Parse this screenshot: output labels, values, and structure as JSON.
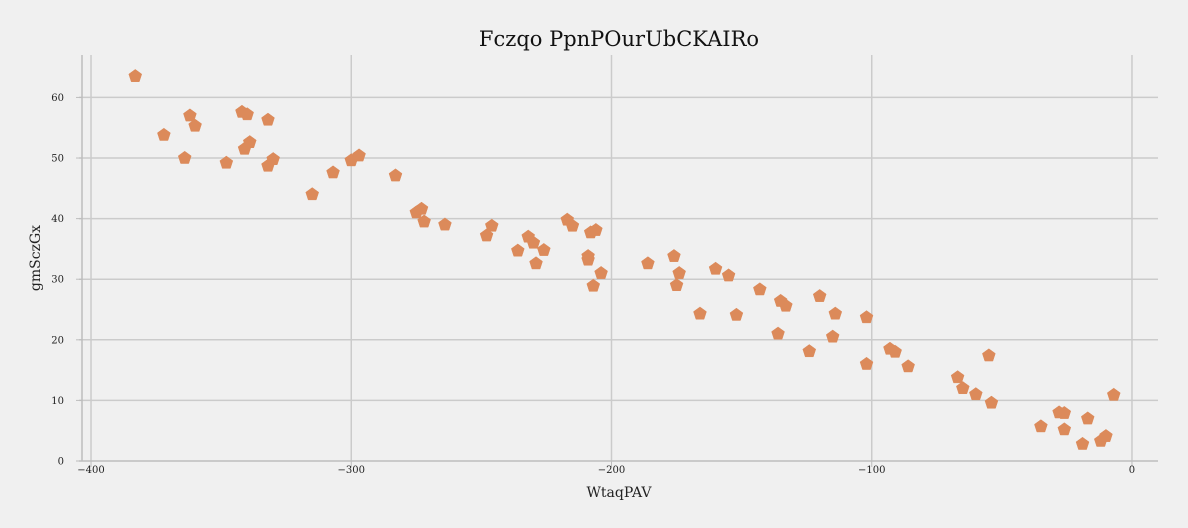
{
  "chart_data": {
    "type": "scatter",
    "title": "Fczqo PpnPOurUbCKAIRo",
    "xlabel": "WtaqPAV",
    "ylabel": "gmSczGx",
    "xlim": [
      -410,
      10
    ],
    "ylim": [
      0,
      67
    ],
    "xticks": [
      -400,
      -300,
      -200,
      -100,
      0
    ],
    "xtick_labels": [
      "−400",
      "−300",
      "−200",
      "−100",
      "0"
    ],
    "yticks": [
      0,
      10,
      20,
      30,
      40,
      50,
      60
    ],
    "ytick_labels": [
      "0",
      "10",
      "20",
      "30",
      "40",
      "50",
      "60"
    ],
    "grid": true,
    "marker": "pentagon",
    "color": "#dc8a5a",
    "series": [
      {
        "points": [
          [
            -383,
            63.5
          ],
          [
            -372,
            53.8
          ],
          [
            -364,
            50.0
          ],
          [
            -362,
            57.0
          ],
          [
            -360,
            55.3
          ],
          [
            -348,
            49.2
          ],
          [
            -342,
            57.6
          ],
          [
            -340,
            57.2
          ],
          [
            -341,
            51.5
          ],
          [
            -339,
            52.6
          ],
          [
            -332,
            56.3
          ],
          [
            -332,
            48.7
          ],
          [
            -330,
            49.8
          ],
          [
            -315,
            44.0
          ],
          [
            -307,
            47.6
          ],
          [
            -300,
            49.6
          ],
          [
            -297,
            50.4
          ],
          [
            -283,
            47.1
          ],
          [
            -275,
            41.0
          ],
          [
            -273,
            41.6
          ],
          [
            -272,
            39.5
          ],
          [
            -264,
            39.0
          ],
          [
            -248,
            37.2
          ],
          [
            -246,
            38.8
          ],
          [
            -236,
            34.7
          ],
          [
            -232,
            37.0
          ],
          [
            -230,
            36.0
          ],
          [
            -229,
            32.6
          ],
          [
            -226,
            34.8
          ],
          [
            -217,
            39.8
          ],
          [
            -215,
            38.8
          ],
          [
            -209,
            33.8
          ],
          [
            -209,
            33.2
          ],
          [
            -208,
            37.7
          ],
          [
            -206,
            38.1
          ],
          [
            -207,
            28.9
          ],
          [
            -204,
            31.0
          ],
          [
            -186,
            32.6
          ],
          [
            -176,
            33.8
          ],
          [
            -174,
            31.0
          ],
          [
            -175,
            29.0
          ],
          [
            -166,
            24.3
          ],
          [
            -160,
            31.7
          ],
          [
            -155,
            30.6
          ],
          [
            -152,
            24.1
          ],
          [
            -143,
            28.3
          ],
          [
            -136,
            21.0
          ],
          [
            -135,
            26.4
          ],
          [
            -133,
            25.6
          ],
          [
            -124,
            18.1
          ],
          [
            -120,
            27.2
          ],
          [
            -115,
            20.5
          ],
          [
            -114,
            24.3
          ],
          [
            -102,
            23.7
          ],
          [
            -102,
            16.0
          ],
          [
            -93,
            18.5
          ],
          [
            -91,
            18.0
          ],
          [
            -86,
            15.6
          ],
          [
            -67,
            13.8
          ],
          [
            -65,
            12.0
          ],
          [
            -60,
            11.0
          ],
          [
            -55,
            17.4
          ],
          [
            -54,
            9.6
          ],
          [
            -35,
            5.7
          ],
          [
            -28,
            8.0
          ],
          [
            -26,
            7.9
          ],
          [
            -26,
            5.2
          ],
          [
            -17,
            7.0
          ],
          [
            -19,
            2.8
          ],
          [
            -12,
            3.3
          ],
          [
            -10,
            4.1
          ],
          [
            -7,
            10.9
          ]
        ]
      }
    ]
  }
}
